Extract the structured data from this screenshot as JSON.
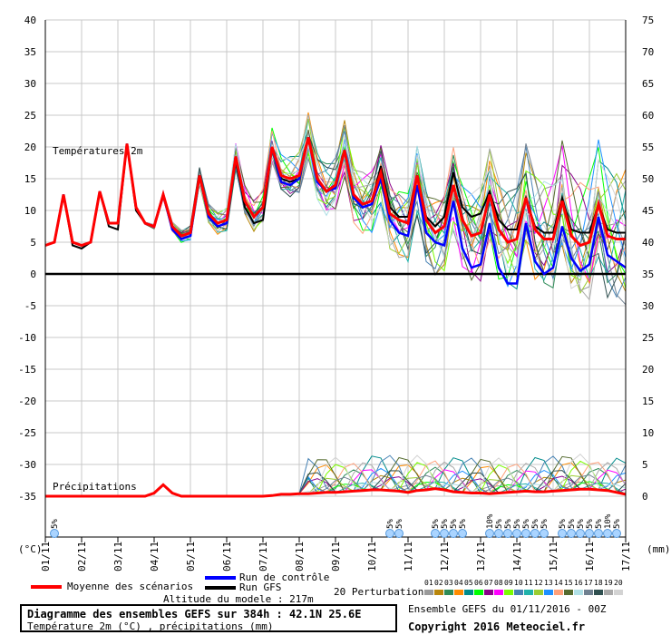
{
  "chart_data": {
    "type": "line",
    "title": "Températures 2m",
    "precip_title": "Précipitations",
    "left_axis_unit": "(°C)",
    "right_axis_unit": "(mm)",
    "y_left_ticks": [
      40,
      35,
      30,
      25,
      20,
      15,
      10,
      5,
      0,
      -5,
      -10,
      -15,
      -20,
      -25,
      -30,
      -35
    ],
    "y_right_ticks": [
      75,
      70,
      65,
      60,
      55,
      50,
      45,
      40,
      35,
      30,
      25,
      20,
      15,
      10,
      5,
      0
    ],
    "ylim_left": [
      -35,
      40
    ],
    "ylim_right": [
      0,
      75
    ],
    "x_ticks": [
      "01/11",
      "02/11",
      "03/11",
      "04/11",
      "05/11",
      "06/11",
      "07/11",
      "08/11",
      "09/11",
      "10/11",
      "11/11",
      "12/11",
      "13/11",
      "14/11",
      "15/11",
      "16/11",
      "17/11"
    ],
    "step_hours": 6,
    "series": [
      {
        "name": "Moyenne des scénarios",
        "color": "#ff0000",
        "values": [
          4.5,
          5,
          12.5,
          5,
          4.5,
          5,
          13,
          8,
          8,
          20.5,
          10.5,
          8,
          7.5,
          12.5,
          7.5,
          6,
          6.5,
          15.5,
          9.5,
          8,
          8.5,
          18.5,
          11.5,
          9,
          10.5,
          20,
          15.5,
          15,
          15.5,
          21.5,
          15,
          13,
          14,
          19.5,
          12.5,
          11,
          11.5,
          16,
          9.5,
          8.5,
          8,
          15.5,
          8.5,
          6.5,
          7.5,
          14,
          8.5,
          6,
          6.5,
          12.5,
          7,
          5,
          5.5,
          12,
          7,
          5.5,
          5.5,
          11.5,
          6,
          4.5,
          5,
          11,
          6,
          5.5,
          5.5
        ]
      },
      {
        "name": "Run de contrôle",
        "color": "#0000ff",
        "values": [
          4.5,
          5,
          12.5,
          5,
          4.5,
          5,
          13,
          8,
          8,
          20.5,
          10.5,
          8,
          7.5,
          12.5,
          7,
          5.5,
          6,
          15.5,
          9,
          7.5,
          8,
          18.5,
          11.5,
          9,
          10.5,
          20,
          14.5,
          14,
          15,
          21.5,
          14.5,
          13,
          13.5,
          19.5,
          12,
          10.5,
          11,
          15,
          8.5,
          6.5,
          6,
          14,
          6.5,
          5,
          4.5,
          11.5,
          4,
          1,
          1.5,
          8,
          1,
          -1.5,
          -1.5,
          8,
          2,
          0,
          1,
          7.5,
          2.5,
          0.5,
          1.5,
          9,
          3,
          2,
          1
        ]
      },
      {
        "name": "Run GFS",
        "color": "#000000",
        "values": [
          4.5,
          5,
          12.5,
          4.5,
          4,
          5,
          13,
          7.5,
          7,
          20.5,
          10,
          8,
          7.5,
          12.5,
          7,
          5.5,
          6,
          15.5,
          9,
          8,
          8.5,
          18,
          10.5,
          8,
          8.5,
          20,
          15,
          14.5,
          15,
          21.5,
          15,
          13,
          14,
          19.5,
          12,
          11,
          11.5,
          17,
          10.5,
          9,
          9,
          15.5,
          9,
          7.5,
          9,
          16,
          10.5,
          9,
          9.5,
          13,
          8.5,
          7,
          7,
          12,
          7.5,
          6.5,
          6.5,
          12,
          7,
          6.5,
          6.5,
          11,
          7,
          6.5,
          6.5
        ]
      }
    ],
    "perturbation_count": 20,
    "precip_mean": [
      0,
      0,
      0,
      0,
      0,
      0,
      0,
      0,
      0,
      0,
      0,
      0,
      0.5,
      1.8,
      0.5,
      0,
      0,
      0,
      0,
      0,
      0,
      0,
      0,
      0,
      0,
      0.1,
      0.3,
      0.3,
      0.4,
      0.4,
      0.5,
      0.6,
      0.6,
      0.7,
      0.8,
      0.9,
      1.0,
      1.0,
      0.9,
      0.8,
      0.6,
      0.9,
      1.0,
      1.2,
      1.0,
      0.7,
      0.6,
      0.5,
      0.5,
      0.4,
      0.5,
      0.6,
      0.7,
      0.8,
      0.7,
      0.7,
      0.8,
      0.9,
      1.0,
      1.1,
      1.1,
      1.0,
      0.9,
      0.6,
      0.3
    ],
    "snow_markers": [
      {
        "index": 1,
        "label": "5%"
      },
      {
        "index": 38,
        "label": "5%"
      },
      {
        "index": 39,
        "label": "5%"
      },
      {
        "index": 43,
        "label": "5%"
      },
      {
        "index": 44,
        "label": "5%"
      },
      {
        "index": 45,
        "label": "5%"
      },
      {
        "index": 46,
        "label": "5%"
      },
      {
        "index": 49,
        "label": "10%"
      },
      {
        "index": 50,
        "label": "5%"
      },
      {
        "index": 51,
        "label": "5%"
      },
      {
        "index": 52,
        "label": "5%"
      },
      {
        "index": 53,
        "label": "5%"
      },
      {
        "index": 54,
        "label": "5%"
      },
      {
        "index": 55,
        "label": "5%"
      },
      {
        "index": 57,
        "label": "5%"
      },
      {
        "index": 58,
        "label": "5%"
      },
      {
        "index": 59,
        "label": "5%"
      },
      {
        "index": 60,
        "label": "5%"
      },
      {
        "index": 61,
        "label": "5%"
      },
      {
        "index": 62,
        "label": "10%"
      },
      {
        "index": 63,
        "label": "5%"
      }
    ],
    "grid": true
  },
  "legend": {
    "mean": "Moyenne des scénarios",
    "control": "Run de contrôle",
    "gfs": "Run GFS",
    "perturbations": "20 Perturbations",
    "pert_numbers": [
      "01",
      "02",
      "03",
      "04",
      "05",
      "06",
      "07",
      "08",
      "09",
      "10",
      "11",
      "12",
      "13",
      "14",
      "15",
      "16",
      "17",
      "18",
      "19",
      "20"
    ],
    "pert_colors": [
      "#9a9a9a",
      "#b8860b",
      "#2e8b57",
      "#ff8c00",
      "#008b8b",
      "#00ff00",
      "#8b008b",
      "#ff00ff",
      "#7cfc00",
      "#4682b4",
      "#20b2aa",
      "#9acd32",
      "#1e90ff",
      "#ffa07a",
      "#556b2f",
      "#b0e0e6",
      "#708090",
      "#2f4f4f",
      "#a9a9a9",
      "#d3d3d3"
    ],
    "color_mean": "#ff0000",
    "color_control": "#0000ff",
    "color_gfs": "#000000"
  },
  "footer": {
    "altitude": "Altitude du modele : 217m",
    "title": "Diagramme des ensembles GEFS sur 384h : 42.1N 25.6E",
    "subtitle": "Température 2m (°C) , précipitations (mm)",
    "ensemble": "Ensemble GEFS du 01/11/2016 - 00Z",
    "copyright": "Copyright 2016 Meteociel.fr"
  }
}
